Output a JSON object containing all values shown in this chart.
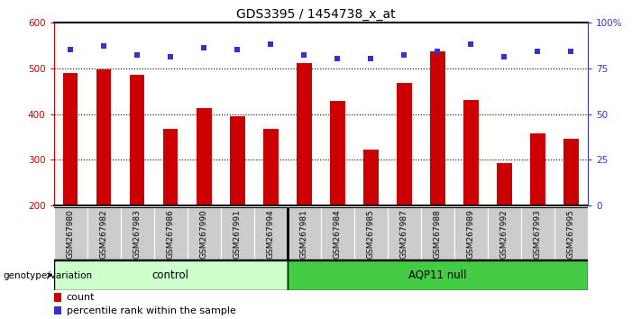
{
  "title": "GDS3395 / 1454738_x_at",
  "categories": [
    "GSM267980",
    "GSM267982",
    "GSM267983",
    "GSM267986",
    "GSM267990",
    "GSM267991",
    "GSM267994",
    "GSM267981",
    "GSM267984",
    "GSM267985",
    "GSM267987",
    "GSM267988",
    "GSM267989",
    "GSM267992",
    "GSM267993",
    "GSM267995"
  ],
  "bar_values": [
    490,
    498,
    486,
    367,
    412,
    395,
    368,
    512,
    428,
    322,
    468,
    537,
    430,
    293,
    358,
    347
  ],
  "percentile_values": [
    85,
    87,
    82,
    81,
    86,
    85,
    88,
    82,
    80,
    80,
    82,
    84,
    88,
    81,
    84,
    84
  ],
  "bar_color": "#cc0000",
  "dot_color": "#3333cc",
  "ylim_left": [
    200,
    600
  ],
  "ylim_right": [
    0,
    100
  ],
  "yticks_left": [
    200,
    300,
    400,
    500,
    600
  ],
  "yticks_right": [
    0,
    25,
    50,
    75,
    100
  ],
  "grid_values": [
    300,
    400,
    500
  ],
  "control_label": "control",
  "aqp_label": "AQP11 null",
  "group_label": "genotype/variation",
  "control_count": 7,
  "aqp_count": 9,
  "legend_count_label": "count",
  "legend_pct_label": "percentile rank within the sample",
  "control_bg": "#ccffcc",
  "aqp_bg": "#44cc44",
  "xlabel_bg": "#cccccc",
  "bar_bottom": 200,
  "bar_width": 0.45,
  "dot_size": 22,
  "title_fontsize": 10,
  "tick_fontsize": 7.5,
  "label_fontsize": 6.5,
  "group_fontsize": 8.5,
  "legend_fontsize": 8
}
